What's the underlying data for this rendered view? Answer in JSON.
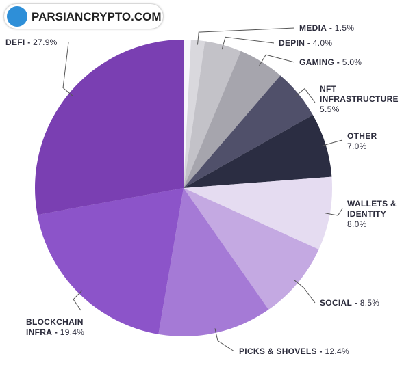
{
  "watermark": "PARSIANCRYPTO.COM",
  "chart_data": {
    "type": "pie",
    "categories": [
      "MEDIA",
      "DEPIN",
      "GAMING",
      "NFT INFRASTRUCTURE",
      "OTHER",
      "WALLETS & IDENTITY",
      "SOCIAL",
      "PICKS & SHOVELS",
      "BLOCKCHAIN INFRA",
      "DEFI"
    ],
    "values": [
      1.5,
      4.0,
      5.0,
      5.5,
      7.0,
      8.0,
      8.5,
      12.4,
      19.4,
      27.9
    ],
    "value_labels": [
      "1.5%",
      "4.0%",
      "5.0%",
      "5.5%",
      "7.0%",
      "8.0%",
      "8.5%",
      "12.4%",
      "19.4%",
      "27.9%"
    ],
    "label_separator": "-",
    "colors": [
      "#d9d8dd",
      "#c3c2c8",
      "#a6a5ad",
      "#50506a",
      "#2b2d42",
      "#e5dcf1",
      "#c4a9e2",
      "#a57ad6",
      "#8c54c9",
      "#7a3fb2"
    ]
  }
}
